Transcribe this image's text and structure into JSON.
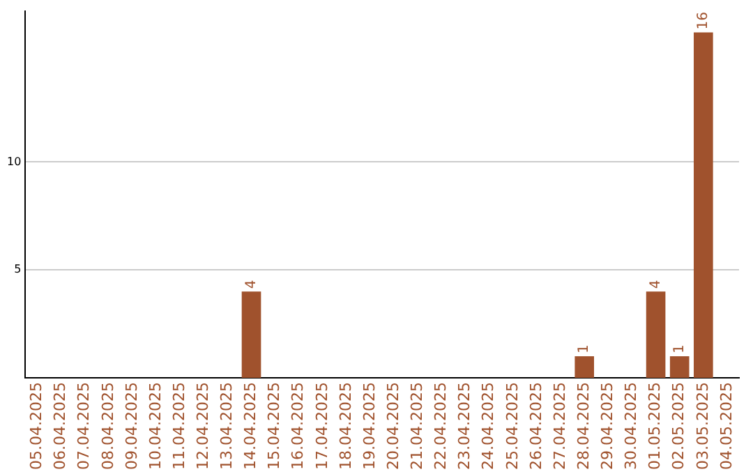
{
  "chart_data": {
    "type": "bar",
    "categories": [
      "05.04.2025",
      "06.04.2025",
      "07.04.2025",
      "08.04.2025",
      "09.04.2025",
      "10.04.2025",
      "11.04.2025",
      "12.04.2025",
      "13.04.2025",
      "14.04.2025",
      "15.04.2025",
      "16.04.2025",
      "17.04.2025",
      "18.04.2025",
      "19.04.2025",
      "20.04.2025",
      "21.04.2025",
      "22.04.2025",
      "23.04.2025",
      "24.04.2025",
      "25.04.2025",
      "26.04.2025",
      "27.04.2025",
      "28.04.2025",
      "29.04.2025",
      "30.04.2025",
      "01.05.2025",
      "02.05.2025",
      "03.05.2025",
      "04.05.2025"
    ],
    "values": [
      0,
      0,
      0,
      0,
      0,
      0,
      0,
      0,
      0,
      4,
      0,
      0,
      0,
      0,
      0,
      0,
      0,
      0,
      0,
      0,
      0,
      0,
      0,
      1,
      0,
      0,
      4,
      1,
      16,
      0
    ],
    "value_labels": [
      null,
      null,
      null,
      null,
      null,
      null,
      null,
      null,
      null,
      "4",
      null,
      null,
      null,
      null,
      null,
      null,
      null,
      null,
      null,
      null,
      null,
      null,
      null,
      "1",
      null,
      null,
      "4",
      "1",
      "16",
      null
    ],
    "color": "#a0522d",
    "ylim": [
      0,
      17
    ],
    "yticks": [
      5,
      10
    ],
    "grid": "y",
    "legend": false
  }
}
